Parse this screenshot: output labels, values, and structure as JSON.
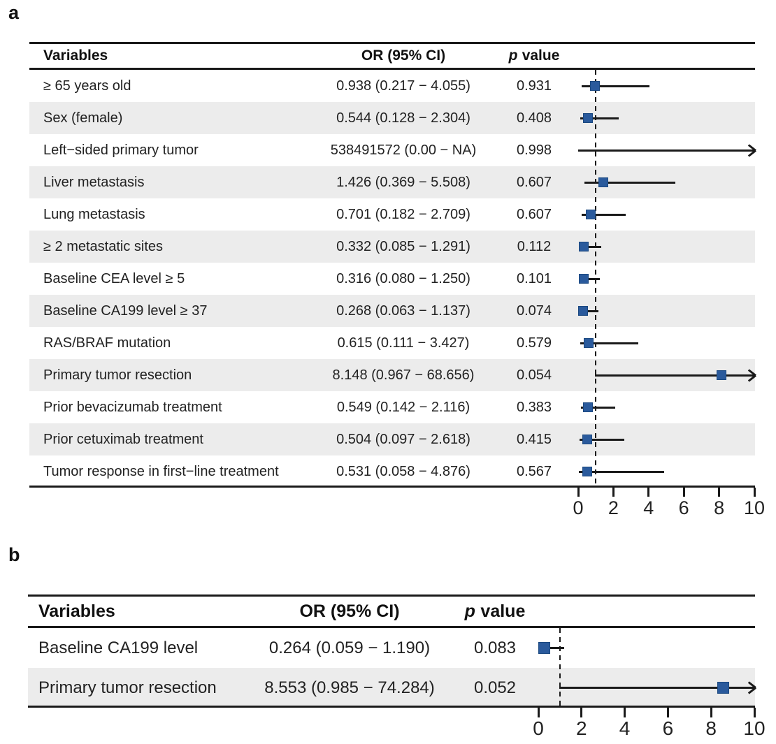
{
  "colors": {
    "marker": "#2a5a9c",
    "marker_border": "#1a4880",
    "band": "#ececec",
    "line": "#1a1a1a",
    "text": "#222222"
  },
  "chart_data": [
    {
      "type": "forest",
      "panel_label": "a",
      "header": {
        "variables": "Variables",
        "or": "OR (95% CI)",
        "p_italic": "p",
        "p_rest": "value"
      },
      "axis": {
        "min": 0,
        "max": 10,
        "ticks": [
          0,
          2,
          4,
          6,
          8,
          10
        ],
        "reference_line": 1,
        "grid": false
      },
      "rows": [
        {
          "variable": "≥ 65 years old",
          "or_ci": "0.938 (0.217 − 4.055)",
          "p": "0.931",
          "est": 0.938,
          "low": 0.217,
          "high": 4.055,
          "arrow": false,
          "shaded": false
        },
        {
          "variable": "Sex (female)",
          "or_ci": "0.544 (0.128 − 2.304)",
          "p": "0.408",
          "est": 0.544,
          "low": 0.128,
          "high": 2.304,
          "arrow": false,
          "shaded": true
        },
        {
          "variable": "Left−sided primary tumor",
          "or_ci": "538491572 (0.00 − NA)",
          "p": "0.998",
          "est": null,
          "low": 0,
          "high": null,
          "arrow": true,
          "shaded": false
        },
        {
          "variable": "Liver metastasis",
          "or_ci": "1.426 (0.369 − 5.508)",
          "p": "0.607",
          "est": 1.426,
          "low": 0.369,
          "high": 5.508,
          "arrow": false,
          "shaded": true
        },
        {
          "variable": "Lung metastasis",
          "or_ci": "0.701 (0.182 − 2.709)",
          "p": "0.607",
          "est": 0.701,
          "low": 0.182,
          "high": 2.709,
          "arrow": false,
          "shaded": false
        },
        {
          "variable": "≥ 2 metastatic sites",
          "or_ci": "0.332 (0.085 − 1.291)",
          "p": "0.112",
          "est": 0.332,
          "low": 0.085,
          "high": 1.291,
          "arrow": false,
          "shaded": true
        },
        {
          "variable": "Baseline CEA level ≥ 5",
          "or_ci": "0.316 (0.080 − 1.250)",
          "p": "0.101",
          "est": 0.316,
          "low": 0.08,
          "high": 1.25,
          "arrow": false,
          "shaded": false
        },
        {
          "variable": "Baseline CA199 level ≥ 37",
          "or_ci": "0.268 (0.063 − 1.137)",
          "p": "0.074",
          "est": 0.268,
          "low": 0.063,
          "high": 1.137,
          "arrow": false,
          "shaded": true
        },
        {
          "variable": "RAS/BRAF mutation",
          "or_ci": "0.615 (0.111 − 3.427)",
          "p": "0.579",
          "est": 0.615,
          "low": 0.111,
          "high": 3.427,
          "arrow": false,
          "shaded": false
        },
        {
          "variable": "Primary tumor resection",
          "or_ci": "8.148 (0.967 − 68.656)",
          "p": "0.054",
          "est": 8.148,
          "low": 0.967,
          "high": 68.656,
          "arrow": true,
          "shaded": true
        },
        {
          "variable": "Prior bevacizumab treatment",
          "or_ci": "0.549 (0.142 − 2.116)",
          "p": "0.383",
          "est": 0.549,
          "low": 0.142,
          "high": 2.116,
          "arrow": false,
          "shaded": false
        },
        {
          "variable": "Prior cetuximab treatment",
          "or_ci": "0.504 (0.097 − 2.618)",
          "p": "0.415",
          "est": 0.504,
          "low": 0.097,
          "high": 2.618,
          "arrow": false,
          "shaded": true
        },
        {
          "variable": "Tumor response in first−line treatment",
          "or_ci": "0.531 (0.058 − 4.876)",
          "p": "0.567",
          "est": 0.531,
          "low": 0.058,
          "high": 4.876,
          "arrow": false,
          "shaded": false
        }
      ]
    },
    {
      "type": "forest",
      "panel_label": "b",
      "header": {
        "variables": "Variables",
        "or": "OR (95% CI)",
        "p_italic": "p",
        "p_rest": "value"
      },
      "axis": {
        "min": 0,
        "max": 10,
        "ticks": [
          0,
          2,
          4,
          6,
          8,
          10
        ],
        "reference_line": 1,
        "grid": false
      },
      "rows": [
        {
          "variable": "Baseline CA199 level",
          "or_ci": "0.264 (0.059 − 1.190)",
          "p": "0.083",
          "est": 0.264,
          "low": 0.059,
          "high": 1.19,
          "arrow": false,
          "shaded": false
        },
        {
          "variable": "Primary tumor resection",
          "or_ci": "8.553 (0.985 − 74.284)",
          "p": "0.052",
          "est": 8.553,
          "low": 0.985,
          "high": 74.284,
          "arrow": true,
          "shaded": true
        }
      ]
    }
  ]
}
